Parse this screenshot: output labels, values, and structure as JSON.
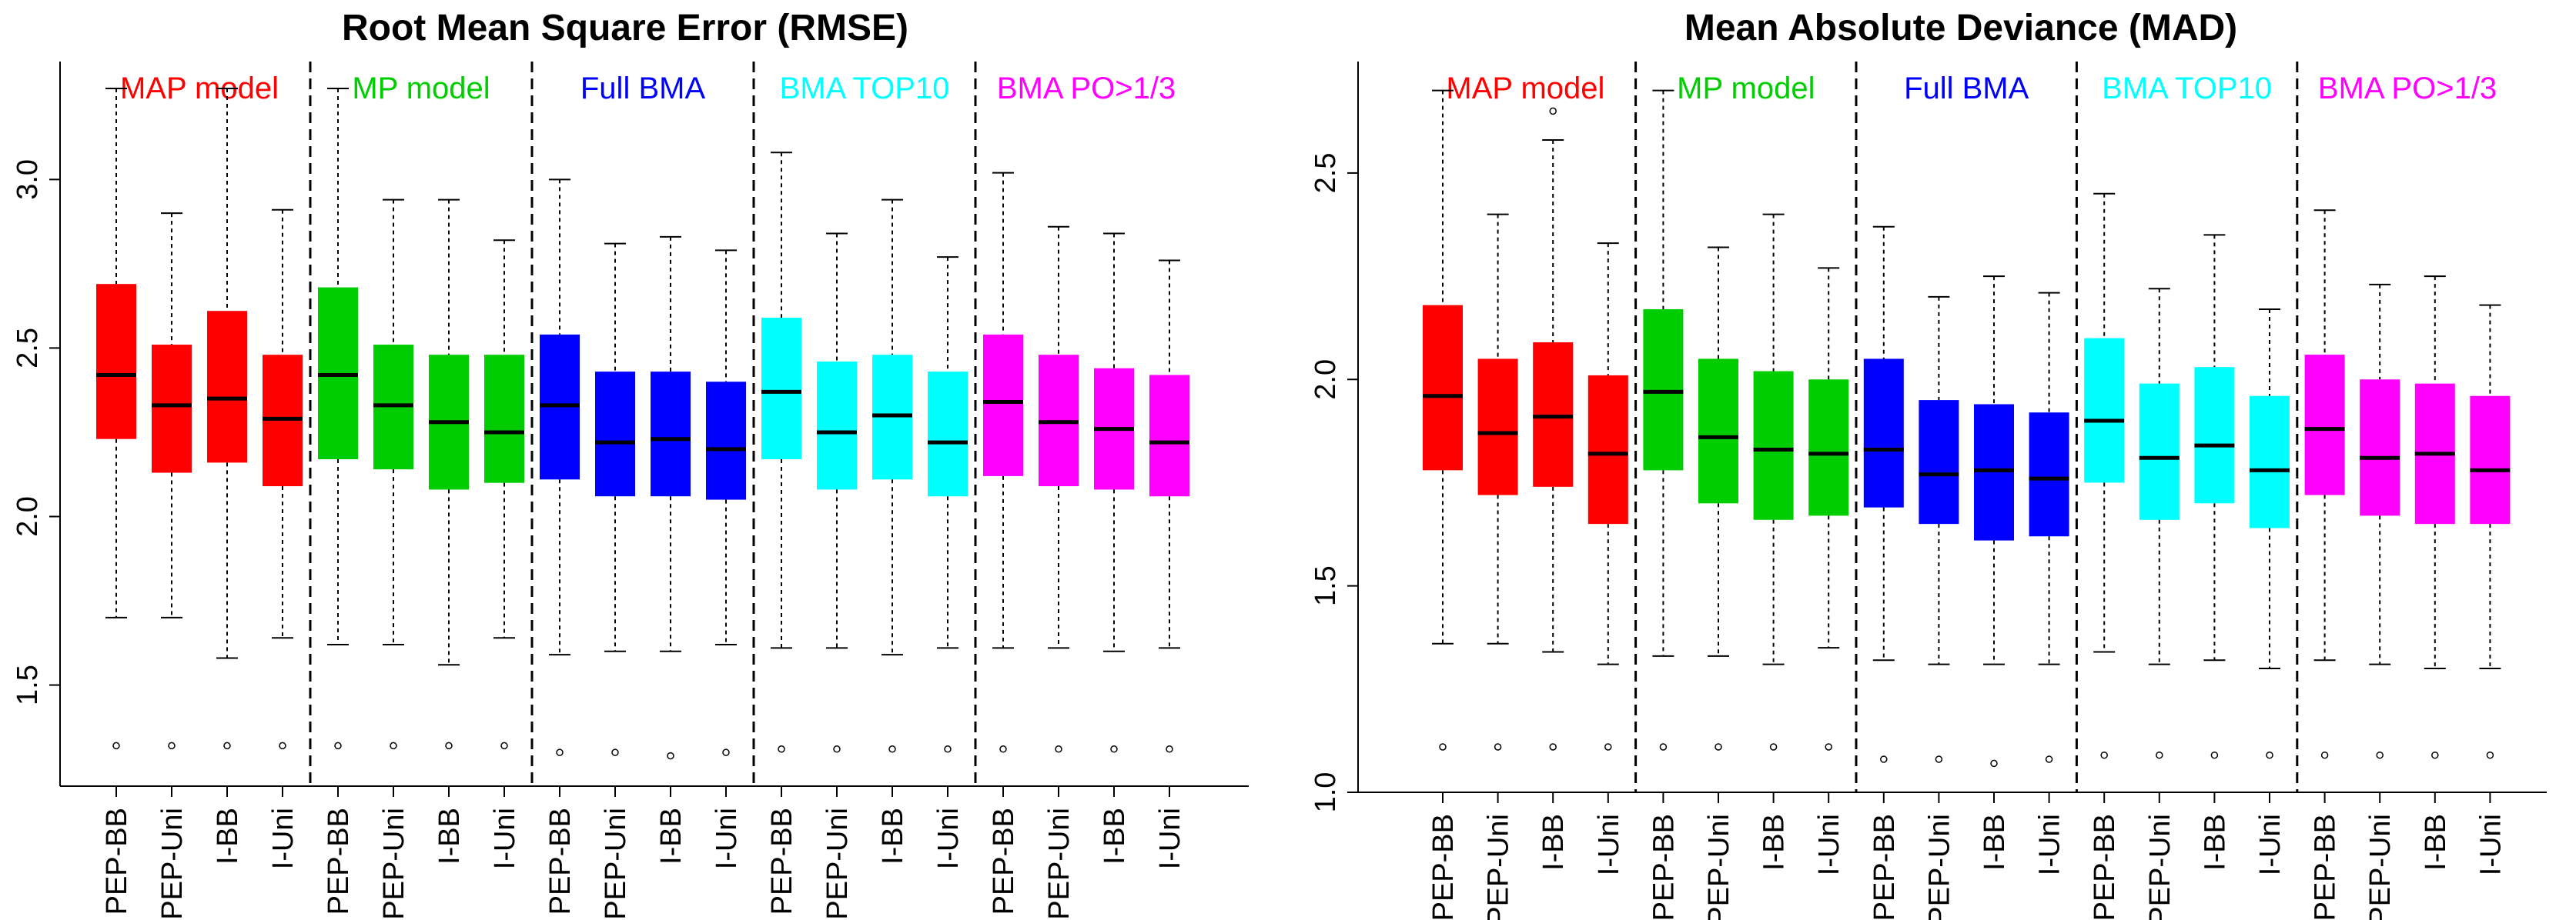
{
  "chart_data": [
    {
      "type": "boxplot",
      "title": "Root Mean Square Error (RMSE)",
      "xlabel": "",
      "ylabel": "",
      "ylim": [
        1.2,
        3.35
      ],
      "yticks": [
        1.5,
        2.0,
        2.5,
        3.0
      ],
      "grid": false,
      "groups": [
        {
          "name": "MAP model",
          "color": "#ff0000"
        },
        {
          "name": "MP model",
          "color": "#00cd00"
        },
        {
          "name": "Full BMA",
          "color": "#0000ff"
        },
        {
          "name": "BMA TOP10",
          "color": "#00ffff"
        },
        {
          "name": "BMA PO>1/3",
          "color": "#ff00ff"
        }
      ],
      "categories": [
        "PEP-BB",
        "PEP-Uni",
        "I-BB",
        "I-Uni",
        "PEP-BB",
        "PEP-Uni",
        "I-BB",
        "I-Uni",
        "PEP-BB",
        "PEP-Uni",
        "I-BB",
        "I-Uni",
        "PEP-BB",
        "PEP-Uni",
        "I-BB",
        "I-Uni",
        "PEP-BB",
        "PEP-Uni",
        "I-BB",
        "I-Uni"
      ],
      "boxes": [
        {
          "group": 0,
          "whisker_low": 1.7,
          "q1": 2.23,
          "median": 2.42,
          "q3": 2.69,
          "whisker_high": 3.27,
          "outliers": [
            1.32
          ]
        },
        {
          "group": 0,
          "whisker_low": 1.7,
          "q1": 2.13,
          "median": 2.33,
          "q3": 2.51,
          "whisker_high": 2.9,
          "outliers": [
            1.32
          ]
        },
        {
          "group": 0,
          "whisker_low": 1.58,
          "q1": 2.16,
          "median": 2.35,
          "q3": 2.61,
          "whisker_high": 3.27,
          "outliers": [
            1.32
          ]
        },
        {
          "group": 0,
          "whisker_low": 1.64,
          "q1": 2.09,
          "median": 2.29,
          "q3": 2.48,
          "whisker_high": 2.91,
          "outliers": [
            1.32
          ]
        },
        {
          "group": 1,
          "whisker_low": 1.62,
          "q1": 2.17,
          "median": 2.42,
          "q3": 2.68,
          "whisker_high": 3.27,
          "outliers": [
            1.32
          ]
        },
        {
          "group": 1,
          "whisker_low": 1.62,
          "q1": 2.14,
          "median": 2.33,
          "q3": 2.51,
          "whisker_high": 2.94,
          "outliers": [
            1.32
          ]
        },
        {
          "group": 1,
          "whisker_low": 1.56,
          "q1": 2.08,
          "median": 2.28,
          "q3": 2.48,
          "whisker_high": 2.94,
          "outliers": [
            1.32
          ]
        },
        {
          "group": 1,
          "whisker_low": 1.64,
          "q1": 2.1,
          "median": 2.25,
          "q3": 2.48,
          "whisker_high": 2.82,
          "outliers": [
            1.32
          ]
        },
        {
          "group": 2,
          "whisker_low": 1.59,
          "q1": 2.11,
          "median": 2.33,
          "q3": 2.54,
          "whisker_high": 3.0,
          "outliers": [
            1.3
          ]
        },
        {
          "group": 2,
          "whisker_low": 1.6,
          "q1": 2.06,
          "median": 2.22,
          "q3": 2.43,
          "whisker_high": 2.81,
          "outliers": [
            1.3
          ]
        },
        {
          "group": 2,
          "whisker_low": 1.6,
          "q1": 2.06,
          "median": 2.23,
          "q3": 2.43,
          "whisker_high": 2.83,
          "outliers": [
            1.29
          ]
        },
        {
          "group": 2,
          "whisker_low": 1.62,
          "q1": 2.05,
          "median": 2.2,
          "q3": 2.4,
          "whisker_high": 2.79,
          "outliers": [
            1.3
          ]
        },
        {
          "group": 3,
          "whisker_low": 1.61,
          "q1": 2.17,
          "median": 2.37,
          "q3": 2.59,
          "whisker_high": 3.08,
          "outliers": [
            1.31
          ]
        },
        {
          "group": 3,
          "whisker_low": 1.61,
          "q1": 2.08,
          "median": 2.25,
          "q3": 2.46,
          "whisker_high": 2.84,
          "outliers": [
            1.31
          ]
        },
        {
          "group": 3,
          "whisker_low": 1.59,
          "q1": 2.11,
          "median": 2.3,
          "q3": 2.48,
          "whisker_high": 2.94,
          "outliers": [
            1.31
          ]
        },
        {
          "group": 3,
          "whisker_low": 1.61,
          "q1": 2.06,
          "median": 2.22,
          "q3": 2.43,
          "whisker_high": 2.77,
          "outliers": [
            1.31
          ]
        },
        {
          "group": 4,
          "whisker_low": 1.61,
          "q1": 2.12,
          "median": 2.34,
          "q3": 2.54,
          "whisker_high": 3.02,
          "outliers": [
            1.31
          ]
        },
        {
          "group": 4,
          "whisker_low": 1.61,
          "q1": 2.09,
          "median": 2.28,
          "q3": 2.48,
          "whisker_high": 2.86,
          "outliers": [
            1.31
          ]
        },
        {
          "group": 4,
          "whisker_low": 1.6,
          "q1": 2.08,
          "median": 2.26,
          "q3": 2.44,
          "whisker_high": 2.84,
          "outliers": [
            1.31
          ]
        },
        {
          "group": 4,
          "whisker_low": 1.61,
          "q1": 2.06,
          "median": 2.22,
          "q3": 2.42,
          "whisker_high": 2.76,
          "outliers": [
            1.31
          ]
        }
      ]
    },
    {
      "type": "boxplot",
      "title": "Mean Absolute Deviance (MAD)",
      "xlabel": "",
      "ylabel": "",
      "ylim": [
        1.0,
        2.77
      ],
      "yticks": [
        1.0,
        1.5,
        2.0,
        2.5
      ],
      "grid": false,
      "groups": [
        {
          "name": "MAP model",
          "color": "#ff0000"
        },
        {
          "name": "MP model",
          "color": "#00cd00"
        },
        {
          "name": "Full BMA",
          "color": "#0000ff"
        },
        {
          "name": "BMA TOP10",
          "color": "#00ffff"
        },
        {
          "name": "BMA PO>1/3",
          "color": "#ff00ff"
        }
      ],
      "categories": [
        "PEP-BB",
        "PEP-Uni",
        "I-BB",
        "I-Uni",
        "PEP-BB",
        "PEP-Uni",
        "I-BB",
        "I-Uni",
        "PEP-BB",
        "PEP-Uni",
        "I-BB",
        "I-Uni",
        "PEP-BB",
        "PEP-Uni",
        "I-BB",
        "I-Uni",
        "PEP-BB",
        "PEP-Uni",
        "I-BB",
        "I-Uni"
      ],
      "boxes": [
        {
          "group": 0,
          "whisker_low": 1.36,
          "q1": 1.78,
          "median": 1.96,
          "q3": 2.18,
          "whisker_high": 2.7,
          "outliers": [
            1.11
          ]
        },
        {
          "group": 0,
          "whisker_low": 1.36,
          "q1": 1.72,
          "median": 1.87,
          "q3": 2.05,
          "whisker_high": 2.4,
          "outliers": [
            1.11
          ]
        },
        {
          "group": 0,
          "whisker_low": 1.34,
          "q1": 1.74,
          "median": 1.91,
          "q3": 2.09,
          "whisker_high": 2.58,
          "outliers": [
            1.11,
            2.65
          ]
        },
        {
          "group": 0,
          "whisker_low": 1.31,
          "q1": 1.65,
          "median": 1.82,
          "q3": 2.01,
          "whisker_high": 2.33,
          "outliers": [
            1.11
          ]
        },
        {
          "group": 1,
          "whisker_low": 1.33,
          "q1": 1.78,
          "median": 1.97,
          "q3": 2.17,
          "whisker_high": 2.7,
          "outliers": [
            1.11
          ]
        },
        {
          "group": 1,
          "whisker_low": 1.33,
          "q1": 1.7,
          "median": 1.86,
          "q3": 2.05,
          "whisker_high": 2.32,
          "outliers": [
            1.11
          ]
        },
        {
          "group": 1,
          "whisker_low": 1.31,
          "q1": 1.66,
          "median": 1.83,
          "q3": 2.02,
          "whisker_high": 2.4,
          "outliers": [
            1.11
          ]
        },
        {
          "group": 1,
          "whisker_low": 1.35,
          "q1": 1.67,
          "median": 1.82,
          "q3": 2.0,
          "whisker_high": 2.27,
          "outliers": [
            1.11
          ]
        },
        {
          "group": 2,
          "whisker_low": 1.32,
          "q1": 1.69,
          "median": 1.83,
          "q3": 2.05,
          "whisker_high": 2.37,
          "outliers": [
            1.08
          ]
        },
        {
          "group": 2,
          "whisker_low": 1.31,
          "q1": 1.65,
          "median": 1.77,
          "q3": 1.95,
          "whisker_high": 2.2,
          "outliers": [
            1.08
          ]
        },
        {
          "group": 2,
          "whisker_low": 1.31,
          "q1": 1.61,
          "median": 1.78,
          "q3": 1.94,
          "whisker_high": 2.25,
          "outliers": [
            1.07
          ]
        },
        {
          "group": 2,
          "whisker_low": 1.31,
          "q1": 1.62,
          "median": 1.76,
          "q3": 1.92,
          "whisker_high": 2.21,
          "outliers": [
            1.08
          ]
        },
        {
          "group": 3,
          "whisker_low": 1.34,
          "q1": 1.75,
          "median": 1.9,
          "q3": 2.1,
          "whisker_high": 2.45,
          "outliers": [
            1.09
          ]
        },
        {
          "group": 3,
          "whisker_low": 1.31,
          "q1": 1.66,
          "median": 1.81,
          "q3": 1.99,
          "whisker_high": 2.22,
          "outliers": [
            1.09
          ]
        },
        {
          "group": 3,
          "whisker_low": 1.32,
          "q1": 1.7,
          "median": 1.84,
          "q3": 2.03,
          "whisker_high": 2.35,
          "outliers": [
            1.09
          ]
        },
        {
          "group": 3,
          "whisker_low": 1.3,
          "q1": 1.64,
          "median": 1.78,
          "q3": 1.96,
          "whisker_high": 2.17,
          "outliers": [
            1.09
          ]
        },
        {
          "group": 4,
          "whisker_low": 1.32,
          "q1": 1.72,
          "median": 1.88,
          "q3": 2.06,
          "whisker_high": 2.41,
          "outliers": [
            1.09
          ]
        },
        {
          "group": 4,
          "whisker_low": 1.31,
          "q1": 1.67,
          "median": 1.81,
          "q3": 2.0,
          "whisker_high": 2.23,
          "outliers": [
            1.09
          ]
        },
        {
          "group": 4,
          "whisker_low": 1.3,
          "q1": 1.65,
          "median": 1.82,
          "q3": 1.99,
          "whisker_high": 2.25,
          "outliers": [
            1.09
          ]
        },
        {
          "group": 4,
          "whisker_low": 1.3,
          "q1": 1.65,
          "median": 1.78,
          "q3": 1.96,
          "whisker_high": 2.18,
          "outliers": [
            1.09
          ]
        }
      ]
    }
  ]
}
